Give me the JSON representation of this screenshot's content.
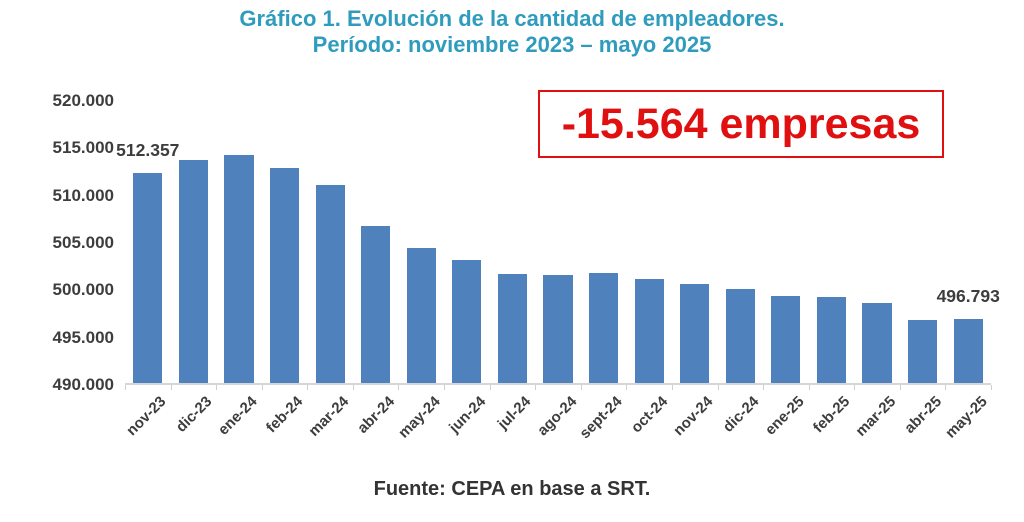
{
  "title": {
    "line1": "Gráfico 1. Evolución de la cantidad de empleadores.",
    "line2": "Período: noviembre 2023 – mayo 2025"
  },
  "annotation": {
    "text": "-15.564 empresas"
  },
  "footer": {
    "source": "Fuente: CEPA en base a SRT."
  },
  "colors": {
    "bar": "#4f81bd",
    "title": "#2f9cbe",
    "annotation_red": "#e01010",
    "axis_text": "#3d3d3d"
  },
  "chart_data": {
    "type": "bar",
    "title": "Gráfico 1. Evolución de la cantidad de empleadores. Período: noviembre 2023 – mayo 2025",
    "categories": [
      "nov-23",
      "dic-23",
      "ene-24",
      "feb-24",
      "mar-24",
      "abr-24",
      "may-24",
      "jun-24",
      "jul-24",
      "ago-24",
      "sept-24",
      "oct-24",
      "nov-24",
      "dic-24",
      "ene-25",
      "feb-25",
      "mar-25",
      "abr-25",
      "may-25"
    ],
    "values": [
      512357,
      513700,
      514250,
      512900,
      511100,
      506750,
      504400,
      503050,
      501550,
      501500,
      501750,
      501050,
      500500,
      500050,
      499250,
      499100,
      498500,
      496700,
      496793
    ],
    "ylim": [
      490000,
      520000
    ],
    "y_tick_labels": [
      "520.000",
      "515.000",
      "510.000",
      "505.000",
      "500.000",
      "495.000",
      "490.000"
    ],
    "grid": false,
    "legend": false,
    "xlabel": "",
    "ylabel": "",
    "point_labels": [
      {
        "index": 0,
        "text": "512.357"
      },
      {
        "index": 18,
        "text": "496.793"
      }
    ]
  }
}
